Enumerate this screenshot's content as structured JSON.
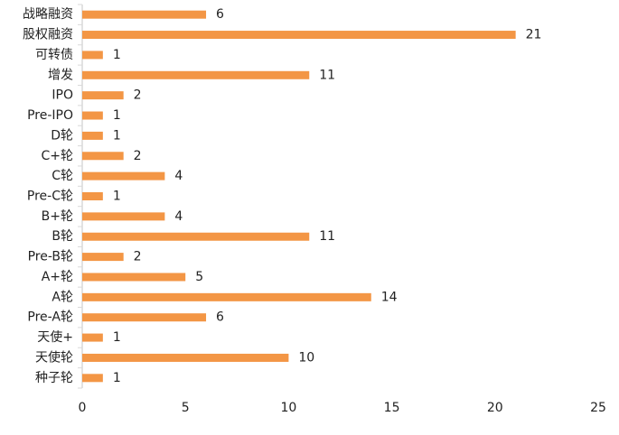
{
  "chart_data": {
    "type": "bar",
    "orientation": "horizontal",
    "categories": [
      "战略融资",
      "股权融资",
      "可转债",
      "增发",
      "IPO",
      "Pre-IPO",
      "D轮",
      "C+轮",
      "C轮",
      "Pre-C轮",
      "B+轮",
      "B轮",
      "Pre-B轮",
      "A+轮",
      "A轮",
      "Pre-A轮",
      "天使+",
      "天使轮",
      "种子轮"
    ],
    "values": [
      6,
      21,
      1,
      11,
      2,
      1,
      1,
      2,
      4,
      1,
      4,
      11,
      2,
      5,
      14,
      6,
      1,
      10,
      1
    ],
    "xlim": [
      0,
      25
    ],
    "xticks": [
      0,
      5,
      10,
      15,
      20,
      25
    ],
    "grid": false,
    "legend": "none",
    "title": "",
    "xlabel": "",
    "ylabel": "",
    "colors": {
      "bar": "#f39645",
      "axis": "#d9d9d9",
      "text": "#222222"
    }
  }
}
